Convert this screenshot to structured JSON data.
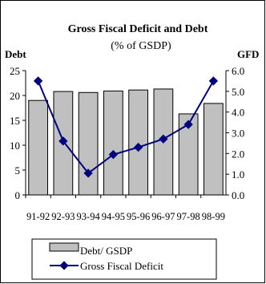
{
  "chart_data": {
    "type": "bar",
    "title": "Gross Fiscal Deficit and Debt",
    "subtitle": "(% of GSDP)",
    "y_left_label": "Debt",
    "y_right_label": "GFD",
    "categories": [
      "91-92",
      "92-93",
      "93-94",
      "94-95",
      "95-96",
      "96-97",
      "97-98",
      "98-99"
    ],
    "left_axis": {
      "ylim": [
        0,
        25
      ],
      "ticks": [
        0,
        5,
        10,
        15,
        20,
        25
      ]
    },
    "right_axis": {
      "ylim": [
        0,
        6
      ],
      "ticks": [
        "0.0",
        "1.0",
        "2.0",
        "3.0",
        "4.0",
        "5.0",
        "6.0"
      ]
    },
    "series": [
      {
        "name": "Debt/ GSDP",
        "type": "bar",
        "axis": "left",
        "color": "#c0c0c0",
        "values": [
          19.0,
          20.8,
          20.6,
          20.9,
          21.1,
          21.3,
          16.3,
          18.4
        ]
      },
      {
        "name": "Gross Fiscal Deficit",
        "type": "line",
        "axis": "right",
        "color": "#00007f",
        "values": [
          5.5,
          2.6,
          1.05,
          1.95,
          2.3,
          2.7,
          3.4,
          5.5
        ]
      }
    ],
    "grid": false,
    "legend_position": "bottom"
  }
}
